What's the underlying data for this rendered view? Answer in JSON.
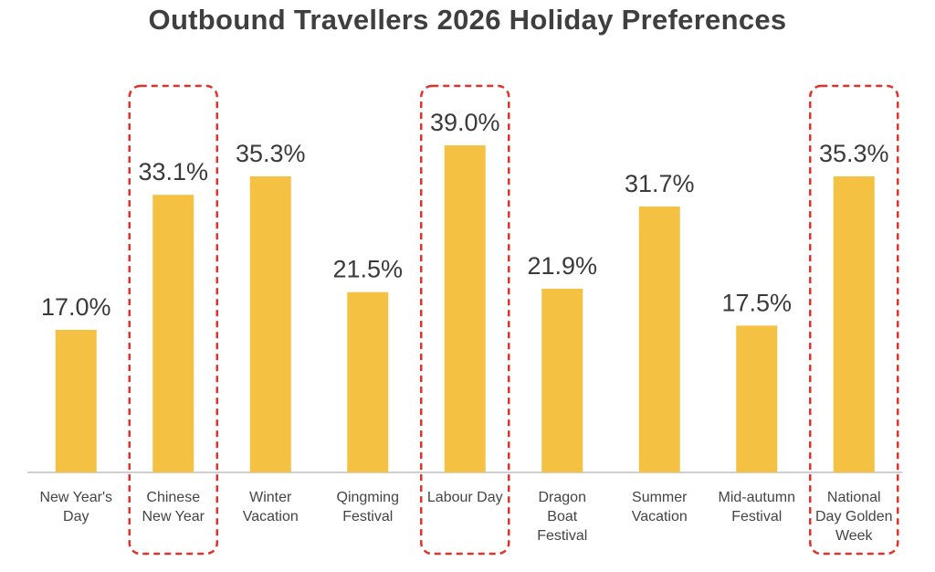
{
  "chart_data": {
    "type": "bar",
    "title": "Outbound Travellers 2026 Holiday Preferences",
    "categories": [
      [
        "New Year's",
        "Day"
      ],
      [
        "Chinese",
        "New Year"
      ],
      [
        "Winter",
        "Vacation"
      ],
      [
        "Qingming",
        "Festival"
      ],
      [
        "Labour Day"
      ],
      [
        "Dragon",
        "Boat",
        "Festival"
      ],
      [
        "Summer",
        "Vacation"
      ],
      [
        "Mid-autumn",
        "Festival"
      ],
      [
        "National",
        "Day Golden",
        "Week"
      ]
    ],
    "values": [
      17.0,
      33.1,
      35.3,
      21.5,
      39.0,
      21.9,
      31.7,
      17.5,
      35.3
    ],
    "value_labels": [
      "17.0%",
      "33.1%",
      "35.3%",
      "21.5%",
      "39.0%",
      "21.9%",
      "31.7%",
      "17.5%",
      "35.3%"
    ],
    "highlighted": [
      "Chinese New Year",
      "Labour Day",
      "National Day Golden Week"
    ],
    "ylim": [
      0,
      45
    ],
    "xlabel": "",
    "ylabel": "",
    "grid": false,
    "colors": {
      "bar": "#F4C142",
      "highlight_box": "#E0312B",
      "axis": "#BFBFBF"
    }
  }
}
